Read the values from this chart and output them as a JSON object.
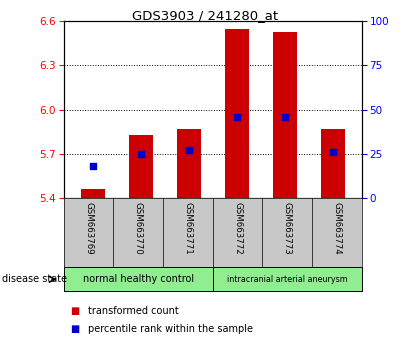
{
  "title": "GDS3903 / 241280_at",
  "samples": [
    "GSM663769",
    "GSM663770",
    "GSM663771",
    "GSM663772",
    "GSM663773",
    "GSM663774"
  ],
  "bar_bottom": 5.4,
  "transformed_counts": [
    5.46,
    5.83,
    5.87,
    6.55,
    6.53,
    5.87
  ],
  "percentile_ranks": [
    18,
    25,
    27,
    46,
    46,
    26
  ],
  "ylim_left": [
    5.4,
    6.6
  ],
  "ylim_right": [
    0,
    100
  ],
  "yticks_left": [
    5.4,
    5.7,
    6.0,
    6.3,
    6.6
  ],
  "yticks_right": [
    0,
    25,
    50,
    75,
    100
  ],
  "bar_color": "#cc0000",
  "percentile_color": "#0000cc",
  "groups": [
    {
      "label": "normal healthy control",
      "cols": [
        0,
        1,
        2
      ],
      "color": "#90ee90"
    },
    {
      "label": "intracranial arterial aneurysm",
      "cols": [
        3,
        4,
        5
      ],
      "color": "#90ee90"
    }
  ],
  "disease_state_label": "disease state",
  "legend_items": [
    {
      "label": "transformed count",
      "color": "#cc0000"
    },
    {
      "label": "percentile rank within the sample",
      "color": "#0000cc"
    }
  ],
  "background_color": "#ffffff",
  "plot_bg_color": "#ffffff",
  "tick_area_color": "#c8c8c8",
  "bar_width": 0.5
}
